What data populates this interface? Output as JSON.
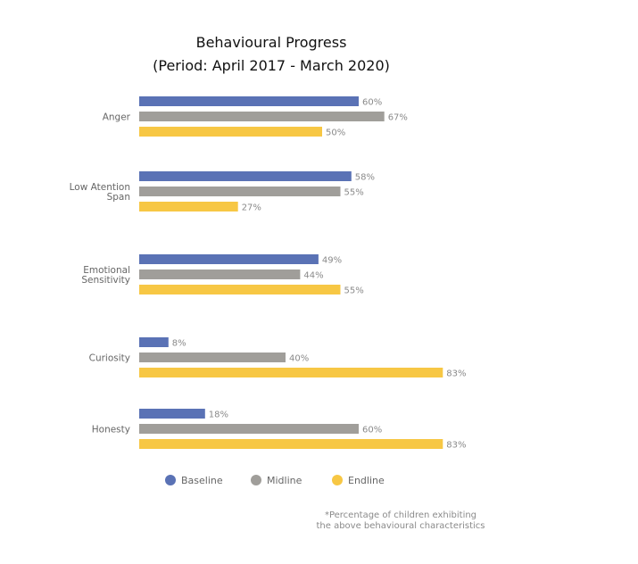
{
  "chart_data": {
    "type": "bar",
    "orientation": "horizontal",
    "title": "Behavioural Progress",
    "subtitle": "(Period: April 2017 - March 2020)",
    "categories": [
      [
        "Anger"
      ],
      [
        "Low Atention",
        "Span"
      ],
      [
        "Emotional",
        "Sensitivity"
      ],
      [
        "Curiosity"
      ],
      [
        "Honesty"
      ]
    ],
    "series": [
      {
        "name": "Baseline",
        "color": "#5a72b5",
        "values": [
          60,
          58,
          49,
          8,
          18
        ]
      },
      {
        "name": "Midline",
        "color": "#a09e9a",
        "values": [
          67,
          55,
          44,
          40,
          60
        ]
      },
      {
        "name": "Endline",
        "color": "#f7c744",
        "values": [
          50,
          27,
          55,
          83,
          83
        ]
      }
    ],
    "value_suffix": "%",
    "xlim": [
      0,
      100
    ],
    "grid": false,
    "legend": "bottom",
    "footnote": [
      "*Percentage of children exhibiting",
      "the above behavioural characteristics"
    ]
  }
}
